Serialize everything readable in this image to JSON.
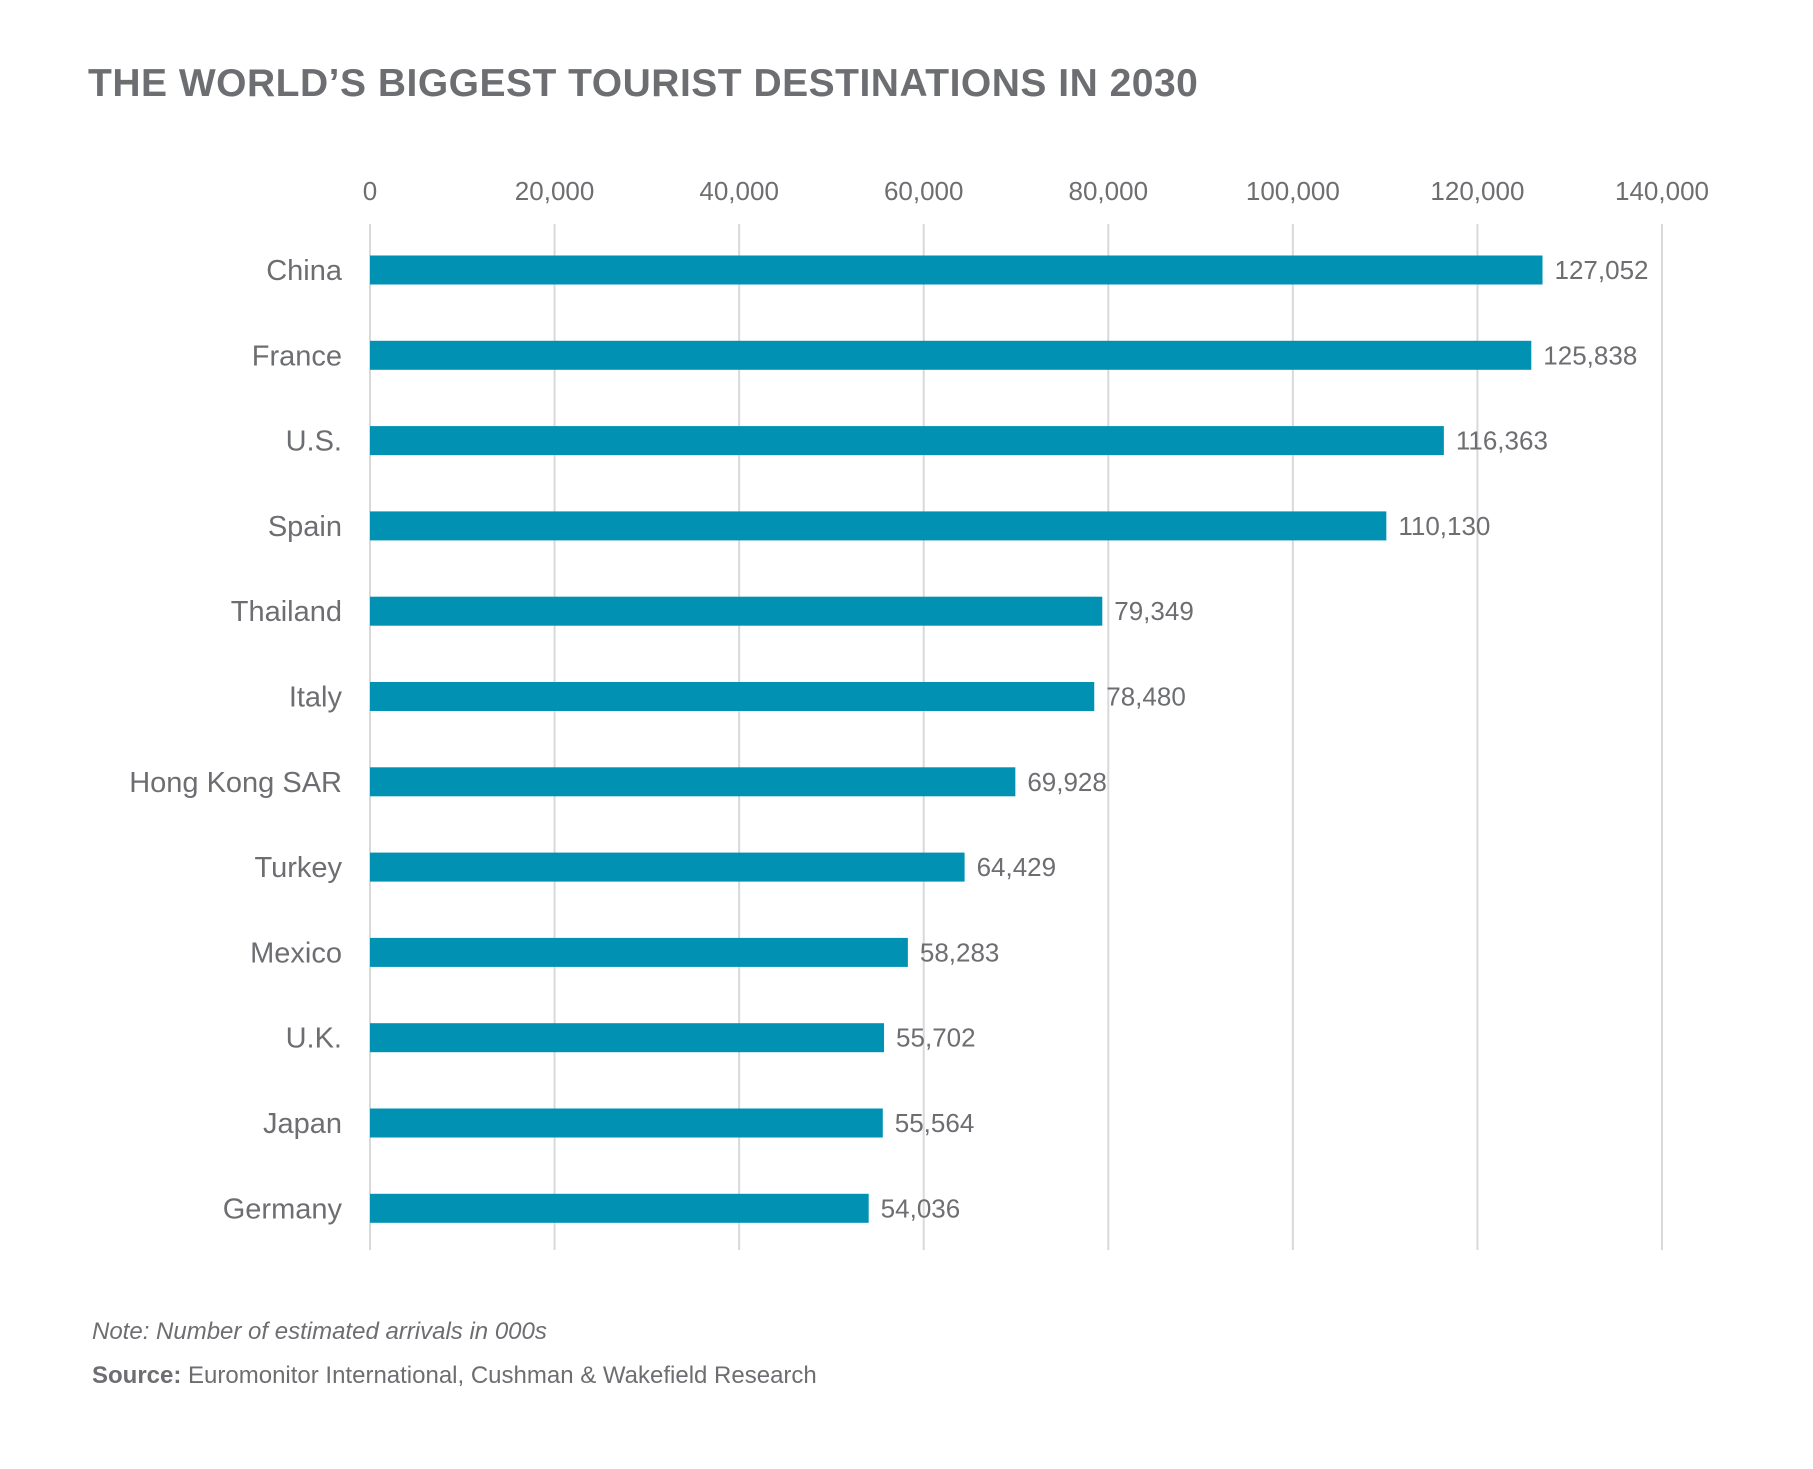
{
  "chart_data": {
    "type": "bar",
    "orientation": "horizontal",
    "title": "THE WORLD’S BIGGEST TOURIST DESTINATIONS IN 2030",
    "categories": [
      "China",
      "France",
      "U.S.",
      "Spain",
      "Thailand",
      "Italy",
      "Hong Kong SAR",
      "Turkey",
      "Mexico",
      "U.K.",
      "Japan",
      "Germany"
    ],
    "values": [
      127052,
      125838,
      116363,
      110130,
      79349,
      78480,
      69928,
      64429,
      58283,
      55702,
      55564,
      54036
    ],
    "value_labels": [
      "127,052",
      "125,838",
      "116,363",
      "110,130",
      "79,349",
      "78,480",
      "69,928",
      "64,429",
      "58,283",
      "55,702",
      "55,564",
      "54,036"
    ],
    "ticks": [
      0,
      20000,
      40000,
      60000,
      80000,
      100000,
      120000,
      140000
    ],
    "tick_labels": [
      "0",
      "20,000",
      "40,000",
      "60,000",
      "80,000",
      "100,000",
      "120,000",
      "140,000"
    ],
    "xlim": [
      0,
      140000
    ],
    "axis_position": "top",
    "grid": true,
    "legend": "none",
    "colors": {
      "bar": "#0091b3",
      "grid": "#d9d9d9",
      "text": "#6d6e71"
    }
  },
  "footer": {
    "note": "Note: Number of estimated arrivals in 000s",
    "source_label": "Source:",
    "source_text": " Euromonitor International, Cushman & Wakefield Research"
  }
}
